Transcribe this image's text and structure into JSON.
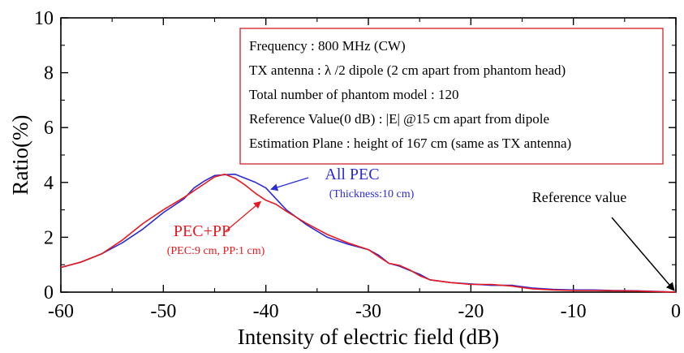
{
  "chart_data": {
    "type": "line",
    "xlabel": "Intensity of electric field (dB)",
    "ylabel": "Ratio(%)",
    "xlim": [
      -60,
      0
    ],
    "ylim": [
      0,
      10
    ],
    "x_ticks": [
      "-60",
      "-50",
      "-40",
      "-30",
      "-20",
      "-10",
      "0"
    ],
    "y_ticks": [
      "0",
      "2",
      "4",
      "6",
      "8",
      "10"
    ],
    "grid": false,
    "series": [
      {
        "name": "All PEC",
        "color": "#2b2bd9",
        "points": [
          [
            -60,
            0.9
          ],
          [
            -58,
            1.1
          ],
          [
            -56,
            1.4
          ],
          [
            -54,
            1.8
          ],
          [
            -52,
            2.3
          ],
          [
            -50,
            2.9
          ],
          [
            -48,
            3.4
          ],
          [
            -47,
            3.8
          ],
          [
            -46,
            4.05
          ],
          [
            -45,
            4.25
          ],
          [
            -44,
            4.28
          ],
          [
            -43,
            4.3
          ],
          [
            -42,
            4.15
          ],
          [
            -41,
            4.0
          ],
          [
            -40,
            3.8
          ],
          [
            -39,
            3.4
          ],
          [
            -38,
            3.0
          ],
          [
            -36,
            2.45
          ],
          [
            -34,
            2.0
          ],
          [
            -32,
            1.75
          ],
          [
            -30,
            1.55
          ],
          [
            -29,
            1.35
          ],
          [
            -28,
            1.05
          ],
          [
            -27,
            0.95
          ],
          [
            -26,
            0.8
          ],
          [
            -25,
            0.65
          ],
          [
            -24,
            0.45
          ],
          [
            -22,
            0.35
          ],
          [
            -20,
            0.3
          ],
          [
            -18,
            0.25
          ],
          [
            -16,
            0.25
          ],
          [
            -14,
            0.15
          ],
          [
            -12,
            0.1
          ],
          [
            -10,
            0.08
          ],
          [
            -8,
            0.08
          ],
          [
            -6,
            0.06
          ],
          [
            -4,
            0.05
          ],
          [
            -2,
            0.03
          ],
          [
            0,
            0.0
          ]
        ]
      },
      {
        "name": "PEC+PP",
        "color": "#e8191e",
        "points": [
          [
            -60,
            0.9
          ],
          [
            -58,
            1.1
          ],
          [
            -56,
            1.4
          ],
          [
            -54,
            1.9
          ],
          [
            -52,
            2.5
          ],
          [
            -50,
            3.0
          ],
          [
            -48,
            3.45
          ],
          [
            -46,
            3.95
          ],
          [
            -45,
            4.2
          ],
          [
            -44,
            4.3
          ],
          [
            -43,
            4.15
          ],
          [
            -42,
            3.9
          ],
          [
            -41,
            3.6
          ],
          [
            -40,
            3.35
          ],
          [
            -39,
            3.2
          ],
          [
            -38,
            2.95
          ],
          [
            -36,
            2.5
          ],
          [
            -34,
            2.1
          ],
          [
            -32,
            1.8
          ],
          [
            -30,
            1.55
          ],
          [
            -29,
            1.3
          ],
          [
            -28,
            1.05
          ],
          [
            -27,
            0.98
          ],
          [
            -26,
            0.82
          ],
          [
            -25,
            0.6
          ],
          [
            -24,
            0.45
          ],
          [
            -22,
            0.35
          ],
          [
            -20,
            0.28
          ],
          [
            -18,
            0.28
          ],
          [
            -16,
            0.22
          ],
          [
            -14,
            0.12
          ],
          [
            -12,
            0.08
          ],
          [
            -10,
            0.06
          ],
          [
            -8,
            0.06
          ],
          [
            -6,
            0.05
          ],
          [
            -4,
            0.04
          ],
          [
            -2,
            0.02
          ],
          [
            0,
            0.0
          ]
        ]
      }
    ],
    "info_box": [
      "Frequency : 800 MHz (CW)",
      "TX antenna : λ /2 dipole (2 cm apart from phantom head)",
      "Total number of phantom model : 120",
      "Reference Value(0 dB) : |E| @15 cm apart from dipole",
      "Estimation Plane : height of 167 cm (same as TX antenna)"
    ],
    "annotations": [
      {
        "title": "All PEC",
        "subtitle": "(Thickness:10 cm)",
        "color": "#2b2bd9",
        "target": [
          -39.5,
          3.75
        ]
      },
      {
        "title": "PEC+PP",
        "subtitle": "(PEC:9 cm, PP:1 cm)",
        "color": "#e8191e",
        "target": [
          -40.5,
          3.3
        ]
      },
      {
        "title": "Reference value",
        "subtitle": "",
        "color": "#000000",
        "target": [
          0,
          0
        ]
      }
    ]
  }
}
